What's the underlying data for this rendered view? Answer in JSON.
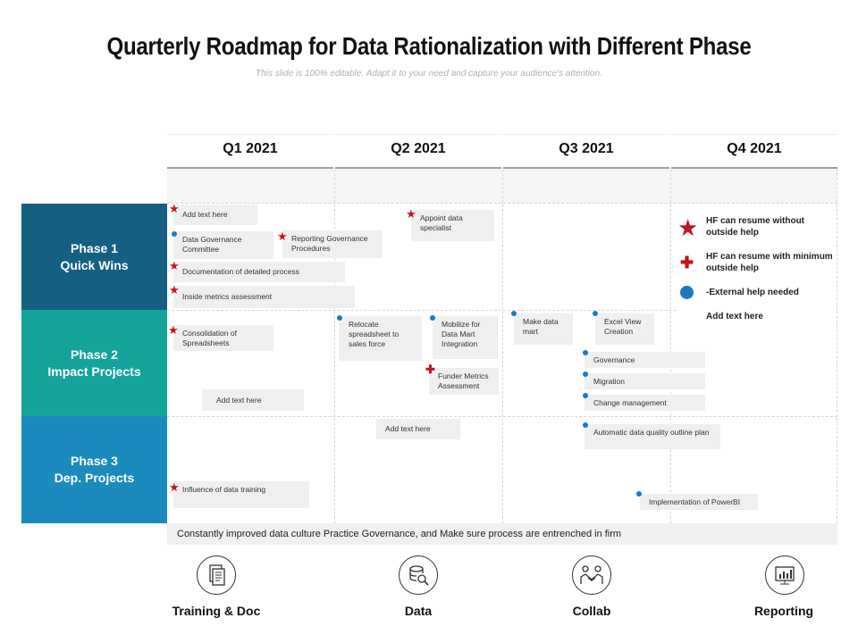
{
  "title": "Quarterly Roadmap for Data Rationalization with Different Phase",
  "subtitle": "This slide is 100% editable. Adapt it to your need and capture your audience's attention.",
  "quarters": [
    "Q1 2021",
    "Q2 2021",
    "Q3 2021",
    "Q4 2021"
  ],
  "phases": [
    {
      "line1": "Phase 1",
      "line2": "Quick Wins",
      "color": "#155f82"
    },
    {
      "line1": "Phase 2",
      "line2": "Impact Projects",
      "color": "#14a39a"
    },
    {
      "line1": "Phase 3",
      "line2": "Dep. Projects",
      "color": "#1b8bbd"
    }
  ],
  "tasks": {
    "q1_add_text_1": "Add text here",
    "q1_data_gov": "Data Governance Committee",
    "q1_reporting_gov": "Reporting Governance Procedures",
    "q1_documentation": "Documentation of detailed process",
    "q1_inside_metrics": "Inside metrics assessment",
    "q1_consolidation": "Consolidation of Spreadsheets",
    "q1_add_text_2": "Add text here",
    "q1_influence": "Influence of data training",
    "q2_appoint": "Appoint data specialist",
    "q2_relocate": "Relocate spreadsheet to sales force",
    "q2_mobilize": "Mobilize for Data Mart Integration",
    "q2_funder": "Funder Metrics Assessment",
    "q2_add_text": "Add text here",
    "q3_make_data_mart": "Make data mart",
    "q3_excel_view": "Excel View Creation",
    "q3_governance": "Governance",
    "q3_migration": "Migration",
    "q3_change_mgmt": "Change management",
    "q3_auto_dq": "Automatic data quality outline plan",
    "q4_powerbi": "Implementation of PowerBI"
  },
  "legend": {
    "star": "HF can resume without outside help",
    "cross": "HF can resume with minimum outside help",
    "dot": "-External help needed",
    "add": "Add text here"
  },
  "banner": "Constantly improved data culture Practice Governance, and Make sure process are entrenched in firm",
  "icons": [
    {
      "name": "document-icon",
      "label": "Training & Doc"
    },
    {
      "name": "database-icon",
      "label": "Data"
    },
    {
      "name": "handshake-icon",
      "label": "Collab"
    },
    {
      "name": "report-icon",
      "label": "Reporting"
    }
  ],
  "colors": {
    "star": "#c0141e",
    "dot": "#1b7bc0"
  }
}
